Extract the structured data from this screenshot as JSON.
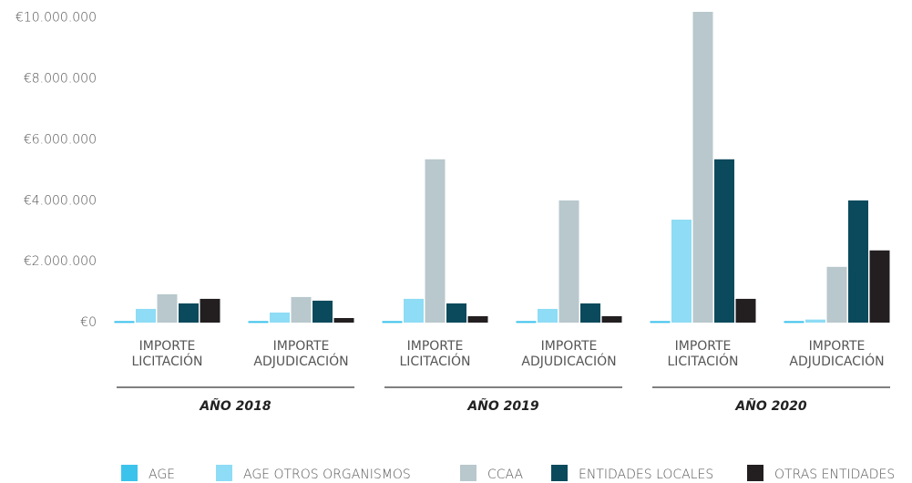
{
  "chart_data": {
    "type": "bar",
    "categories": [
      "IMPORTE LICITACIÓN",
      "IMPORTE ADJUDICACIÓN",
      "IMPORTE LICITACIÓN",
      "IMPORTE ADJUDICACIÓN",
      "IMPORTE LICITACIÓN",
      "IMPORTE ADJUDICACIÓN"
    ],
    "groups": [
      "AÑO 2018",
      "AÑO 2019",
      "AÑO 2020"
    ],
    "series": [
      {
        "name": "AGE",
        "color": "#3cc3ec",
        "values": [
          50000,
          50000,
          50000,
          50000,
          50000,
          50000
        ]
      },
      {
        "name": "AGE OTROS ORGANISMOS",
        "color": "#8edcf5",
        "values": [
          450000,
          330000,
          780000,
          450000,
          3380000,
          100000
        ]
      },
      {
        "name": "CCAA",
        "color": "#b8c8cc",
        "values": [
          930000,
          840000,
          5360000,
          4010000,
          10200000,
          1830000
        ]
      },
      {
        "name": "ENTIDADES LOCALES",
        "color": "#0b4a5c",
        "values": [
          630000,
          720000,
          630000,
          630000,
          5360000,
          4010000
        ]
      },
      {
        "name": "OTRAS ENTIDADES",
        "color": "#231f20",
        "values": [
          780000,
          150000,
          210000,
          210000,
          780000,
          2370000
        ]
      }
    ],
    "ylim": [
      0,
      10200000
    ],
    "yticks": [
      {
        "value": 0,
        "label": "€0"
      },
      {
        "value": 2000000,
        "label": "€2.000.000"
      },
      {
        "value": 4000000,
        "label": "€4.000.000"
      },
      {
        "value": 6000000,
        "label": "€6.000.000"
      },
      {
        "value": 8000000,
        "label": "€8.000.000"
      },
      {
        "value": 10000000,
        "label": "€10.000.000"
      }
    ],
    "grid": false,
    "legend": "bottom"
  }
}
